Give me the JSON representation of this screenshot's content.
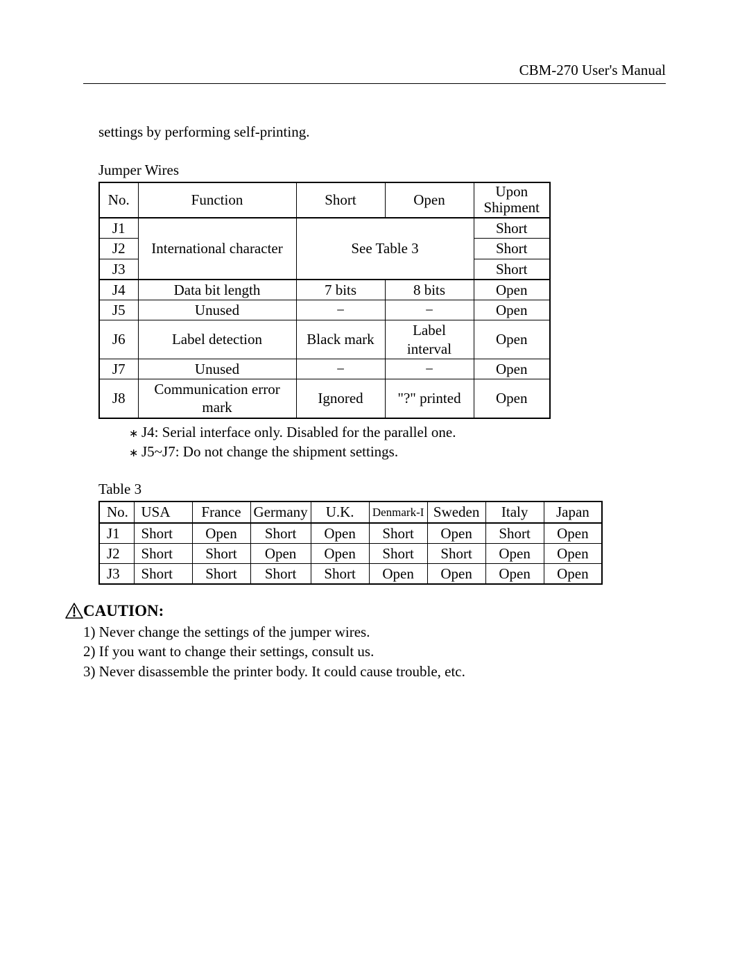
{
  "header": {
    "right": "CBM-270 User's Manual"
  },
  "intro": "settings by performing self-printing.",
  "table1": {
    "title": "Jumper Wires",
    "columns": [
      "No.",
      "Function",
      "Short",
      "Open",
      "Upon Shipment"
    ],
    "r1": {
      "no": "J1",
      "func": "International character",
      "mid": "See Table 3",
      "ship": "Short"
    },
    "r2": {
      "no": "J2",
      "ship": "Short"
    },
    "r3": {
      "no": "J3",
      "ship": "Short"
    },
    "r4": {
      "no": "J4",
      "func": "Data bit length",
      "short": "7 bits",
      "open": "8 bits",
      "ship": "Open"
    },
    "r5": {
      "no": "J5",
      "func": "Unused",
      "short": "−",
      "open": "−",
      "ship": "Open"
    },
    "r6": {
      "no": "J6",
      "func": "Label detection",
      "short": "Black mark",
      "open": "Label interval",
      "ship": "Open"
    },
    "r7": {
      "no": "J7",
      "func": "Unused",
      "short": "−",
      "open": "−",
      "ship": "Open"
    },
    "r8": {
      "no": "J8",
      "func": "Communication error mark",
      "short": "Ignored",
      "open": "\"?\" printed",
      "ship": "Open"
    }
  },
  "notes": {
    "n1": "J4: Serial interface only.  Disabled for the parallel one.",
    "n2": "J5~J7: Do not change the shipment settings."
  },
  "table3": {
    "title": "Table 3",
    "columns": [
      "No.",
      "USA",
      "France",
      "Germany",
      "U.K.",
      "Denmark-I",
      "Sweden",
      "Italy",
      "Japan"
    ],
    "rows": [
      {
        "no": "J1",
        "c": [
          "Short",
          "Open",
          "Short",
          "Open",
          "Short",
          "Open",
          "Short",
          "Open"
        ]
      },
      {
        "no": "J2",
        "c": [
          "Short",
          "Short",
          "Open",
          "Open",
          "Short",
          "Short",
          "Open",
          "Open"
        ]
      },
      {
        "no": "J3",
        "c": [
          "Short",
          "Short",
          "Short",
          "Short",
          "Open",
          "Open",
          "Open",
          "Open"
        ]
      }
    ]
  },
  "caution": {
    "title": "CAUTION:",
    "items": [
      "1)  Never change the settings of the jumper wires.",
      "2)  If you want to change their settings, consult us.",
      "3)  Never disassemble the printer body.  It could cause trouble, etc."
    ]
  }
}
